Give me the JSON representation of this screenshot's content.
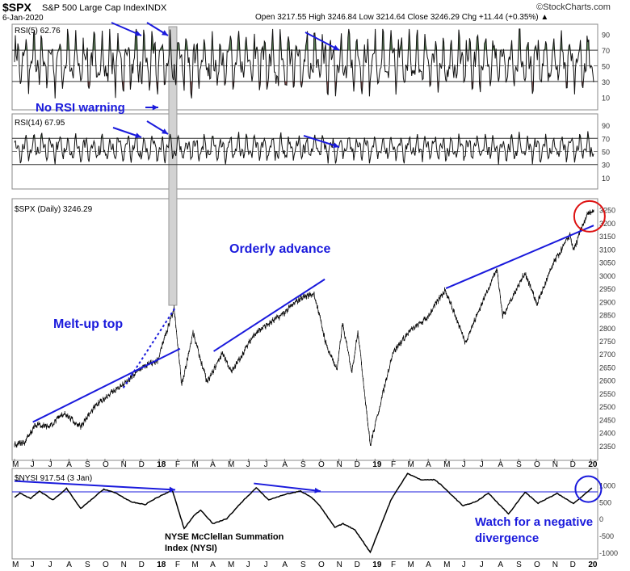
{
  "header": {
    "symbol": "$SPX",
    "name": "S&P 500 Large Cap Index",
    "exchange": "INDX",
    "date": "6-Jan-2020",
    "ohlc": "Open 3217.55  High 3246.84  Low 3214.64  Close 3246.29  Chg +11.44 (+0.35%) ▲",
    "brand": "©StockCharts.com"
  },
  "chart_data": [
    {
      "type": "line",
      "panel": "rsi5",
      "label": "RSI(5) 62.76",
      "ylim": [
        0,
        100
      ],
      "ticks": [
        90,
        70,
        50,
        30,
        10
      ],
      "bands": [
        70,
        30
      ],
      "fill_colors": {
        "over": "#4f7a4a",
        "under": "#8b4a4a"
      },
      "annotations": [
        "arrow at Oct-2017 pointing to RSI(5) peaks",
        "arrow at Oct-2018 pointing down",
        "vertical grey band at late Jan 2018"
      ]
    },
    {
      "type": "text",
      "text": "No RSI warning",
      "color": "#1a1adc"
    },
    {
      "type": "line",
      "panel": "rsi14",
      "label": "RSI(14) 67.95",
      "ylim": [
        0,
        100
      ],
      "ticks": [
        90,
        70,
        50,
        30,
        10
      ],
      "bands": [
        70,
        30
      ]
    },
    {
      "type": "line",
      "panel": "price",
      "label": "$SPX (Daily) 3246.29",
      "ylim": [
        2300,
        3280
      ],
      "ticks": [
        3250,
        3200,
        3150,
        3100,
        3050,
        3000,
        2950,
        2900,
        2850,
        2800,
        2750,
        2700,
        2650,
        2600,
        2550,
        2500,
        2450,
        2400,
        2350
      ],
      "x_start": "2017-05-01",
      "x_end": "2020-01-06",
      "series": [
        {
          "points": [
            [
              "2017-05-01",
              2355
            ],
            [
              "2017-05-18",
              2365
            ],
            [
              "2017-06-05",
              2430
            ],
            [
              "2017-06-30",
              2425
            ],
            [
              "2017-07-25",
              2475
            ],
            [
              "2017-08-10",
              2440
            ],
            [
              "2017-08-21",
              2425
            ],
            [
              "2017-09-15",
              2500
            ],
            [
              "2017-10-10",
              2550
            ],
            [
              "2017-11-06",
              2590
            ],
            [
              "2017-11-30",
              2645
            ],
            [
              "2017-12-29",
              2675
            ],
            [
              "2018-01-26",
              2872
            ],
            [
              "2018-02-08",
              2581
            ],
            [
              "2018-02-27",
              2780
            ],
            [
              "2018-03-23",
              2590
            ],
            [
              "2018-04-18",
              2705
            ],
            [
              "2018-05-03",
              2630
            ],
            [
              "2018-06-12",
              2780
            ],
            [
              "2018-07-25",
              2845
            ],
            [
              "2018-08-29",
              2915
            ],
            [
              "2018-09-20",
              2930
            ],
            [
              "2018-10-11",
              2730
            ],
            [
              "2018-10-29",
              2640
            ],
            [
              "2018-11-07",
              2815
            ],
            [
              "2018-11-23",
              2632
            ],
            [
              "2018-12-03",
              2790
            ],
            [
              "2018-12-24",
              2351
            ],
            [
              "2019-01-31",
              2705
            ],
            [
              "2019-02-28",
              2785
            ],
            [
              "2019-03-29",
              2835
            ],
            [
              "2019-04-30",
              2945
            ],
            [
              "2019-06-03",
              2745
            ],
            [
              "2019-07-26",
              3025
            ],
            [
              "2019-08-05",
              2845
            ],
            [
              "2019-09-12",
              3010
            ],
            [
              "2019-10-02",
              2890
            ],
            [
              "2019-10-30",
              3045
            ],
            [
              "2019-11-27",
              3155
            ],
            [
              "2019-12-03",
              3095
            ],
            [
              "2019-12-27",
              3240
            ],
            [
              "2020-01-03",
              3235
            ],
            [
              "2020-01-06",
              3246
            ]
          ]
        }
      ],
      "trendlines": [
        {
          "from": [
            "2017-06-01",
            2440
          ],
          "to": [
            "2018-02-05",
            2720
          ]
        },
        {
          "from": [
            "2017-11-01",
            2570
          ],
          "to": [
            "2018-01-29",
            2880
          ],
          "dotted": true
        },
        {
          "from": [
            "2018-04-03",
            2710
          ],
          "to": [
            "2018-10-08",
            2985
          ]
        },
        {
          "from": [
            "2019-05-01",
            2950
          ],
          "to": [
            "2020-01-06",
            3190
          ]
        }
      ],
      "texts": [
        "Melt-up top",
        "Orderly advance"
      ],
      "text_color": "#1a1adc",
      "highlight": "red circle around the Jan-2020 high"
    },
    {
      "type": "line",
      "panel": "nysi",
      "label": "$NYSI 917.54 (3 Jan)",
      "ylim": [
        -1100,
        1400
      ],
      "ticks": [
        1000,
        500,
        0,
        -500,
        -1000
      ],
      "reference_level": 800,
      "series": [
        {
          "points": [
            [
              "2017-05-01",
              640
            ],
            [
              "2017-05-10",
              760
            ],
            [
              "2017-05-28",
              600
            ],
            [
              "2017-06-12",
              820
            ],
            [
              "2017-07-05",
              560
            ],
            [
              "2017-07-28",
              900
            ],
            [
              "2017-08-21",
              300
            ],
            [
              "2017-09-29",
              880
            ],
            [
              "2017-10-20",
              760
            ],
            [
              "2017-11-14",
              500
            ],
            [
              "2017-12-08",
              420
            ],
            [
              "2017-12-25",
              600
            ],
            [
              "2018-01-23",
              850
            ],
            [
              "2018-02-12",
              -300
            ],
            [
              "2018-02-28",
              80
            ],
            [
              "2018-03-12",
              260
            ],
            [
              "2018-04-02",
              -150
            ],
            [
              "2018-04-25",
              0
            ],
            [
              "2018-05-22",
              520
            ],
            [
              "2018-06-14",
              920
            ],
            [
              "2018-07-05",
              560
            ],
            [
              "2018-08-01",
              720
            ],
            [
              "2018-08-28",
              820
            ],
            [
              "2018-09-14",
              660
            ],
            [
              "2018-09-28",
              420
            ],
            [
              "2018-10-25",
              -260
            ],
            [
              "2018-11-08",
              -150
            ],
            [
              "2018-11-28",
              -330
            ],
            [
              "2018-12-24",
              -1000
            ],
            [
              "2019-01-28",
              560
            ],
            [
              "2019-02-25",
              1350
            ],
            [
              "2019-03-19",
              1160
            ],
            [
              "2019-04-12",
              1160
            ],
            [
              "2019-04-22",
              1020
            ],
            [
              "2019-05-30",
              380
            ],
            [
              "2019-06-21",
              510
            ],
            [
              "2019-07-12",
              760
            ],
            [
              "2019-08-15",
              140
            ],
            [
              "2019-09-12",
              790
            ],
            [
              "2019-10-04",
              460
            ],
            [
              "2019-11-05",
              750
            ],
            [
              "2019-12-03",
              450
            ],
            [
              "2020-01-03",
              918
            ]
          ]
        }
      ],
      "divergence_line": [
        [
          "2017-05-01",
          1120
        ],
        [
          "2018-01-28",
          860
        ]
      ],
      "divergence_line2": [
        [
          "2018-06-10",
          1050
        ],
        [
          "2018-10-01",
          820
        ]
      ],
      "texts": [
        "Watch for a negative",
        "divergence"
      ],
      "caption": [
        "NYSE McClellan Summation",
        "Index (NYSI)"
      ],
      "highlight": "blue circle around Jan-2020 NYSI"
    }
  ],
  "x_axis": {
    "months": [
      "M",
      "J",
      "J",
      "A",
      "S",
      "O",
      "N",
      "D",
      "18",
      "F",
      "M",
      "A",
      "M",
      "J",
      "J",
      "A",
      "S",
      "O",
      "N",
      "D",
      "19",
      "F",
      "M",
      "A",
      "M",
      "J",
      "J",
      "A",
      "S",
      "O",
      "N",
      "D",
      "20"
    ]
  }
}
